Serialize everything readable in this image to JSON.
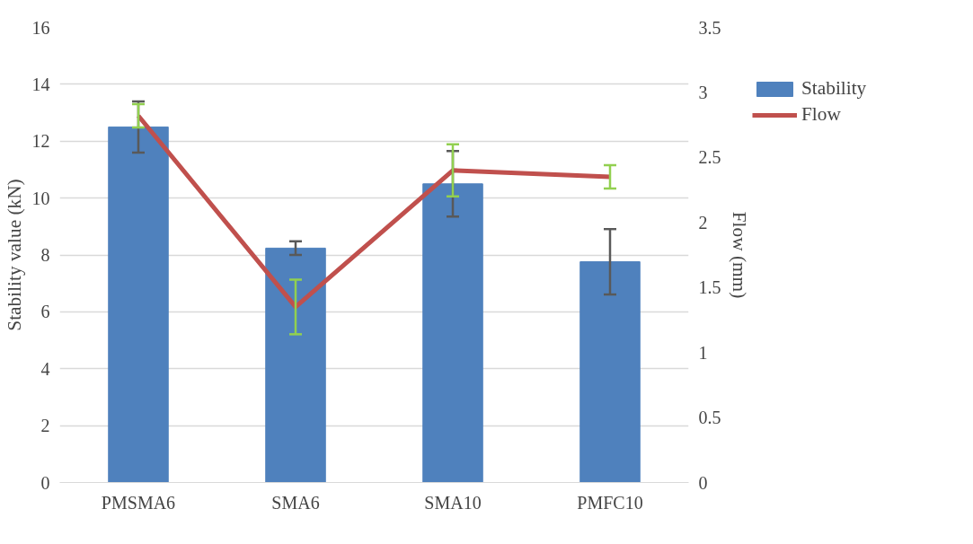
{
  "chart_data": {
    "type": "bar",
    "ylabel": "Stability value (kN)",
    "y2label": "Flow (mm)",
    "categories": [
      "PMSMA6",
      "SMA6",
      "SMA10",
      "PMFC10"
    ],
    "series": [
      {
        "name": "Stability",
        "color": "#4f81bd",
        "values": [
          12.5,
          8.24,
          10.5,
          7.76
        ],
        "errors": [
          0.9,
          0.24,
          1.15,
          1.15
        ]
      },
      {
        "name": "Flow",
        "type": "line",
        "axis": "y2",
        "color": "#c0504d",
        "values": [
          2.82,
          1.35,
          2.4,
          2.35
        ],
        "errors": [
          0.09,
          0.21,
          0.2,
          0.09
        ]
      }
    ],
    "ylim": [
      0,
      16
    ],
    "yticks": [
      0,
      2,
      4,
      6,
      8,
      10,
      12,
      14,
      16
    ],
    "y2lim": [
      0,
      3.5
    ],
    "y2ticks": [
      0,
      {
        "value": 0.5,
        "label": "0.5"
      },
      1,
      {
        "value": 1.5,
        "label": "1.5"
      },
      2,
      {
        "value": 2.5,
        "label": "2.5"
      },
      3,
      {
        "value": 3.5,
        "label": "3.5"
      }
    ],
    "grid": "y",
    "legend": "right",
    "line_style": "solid",
    "marker": "none"
  }
}
